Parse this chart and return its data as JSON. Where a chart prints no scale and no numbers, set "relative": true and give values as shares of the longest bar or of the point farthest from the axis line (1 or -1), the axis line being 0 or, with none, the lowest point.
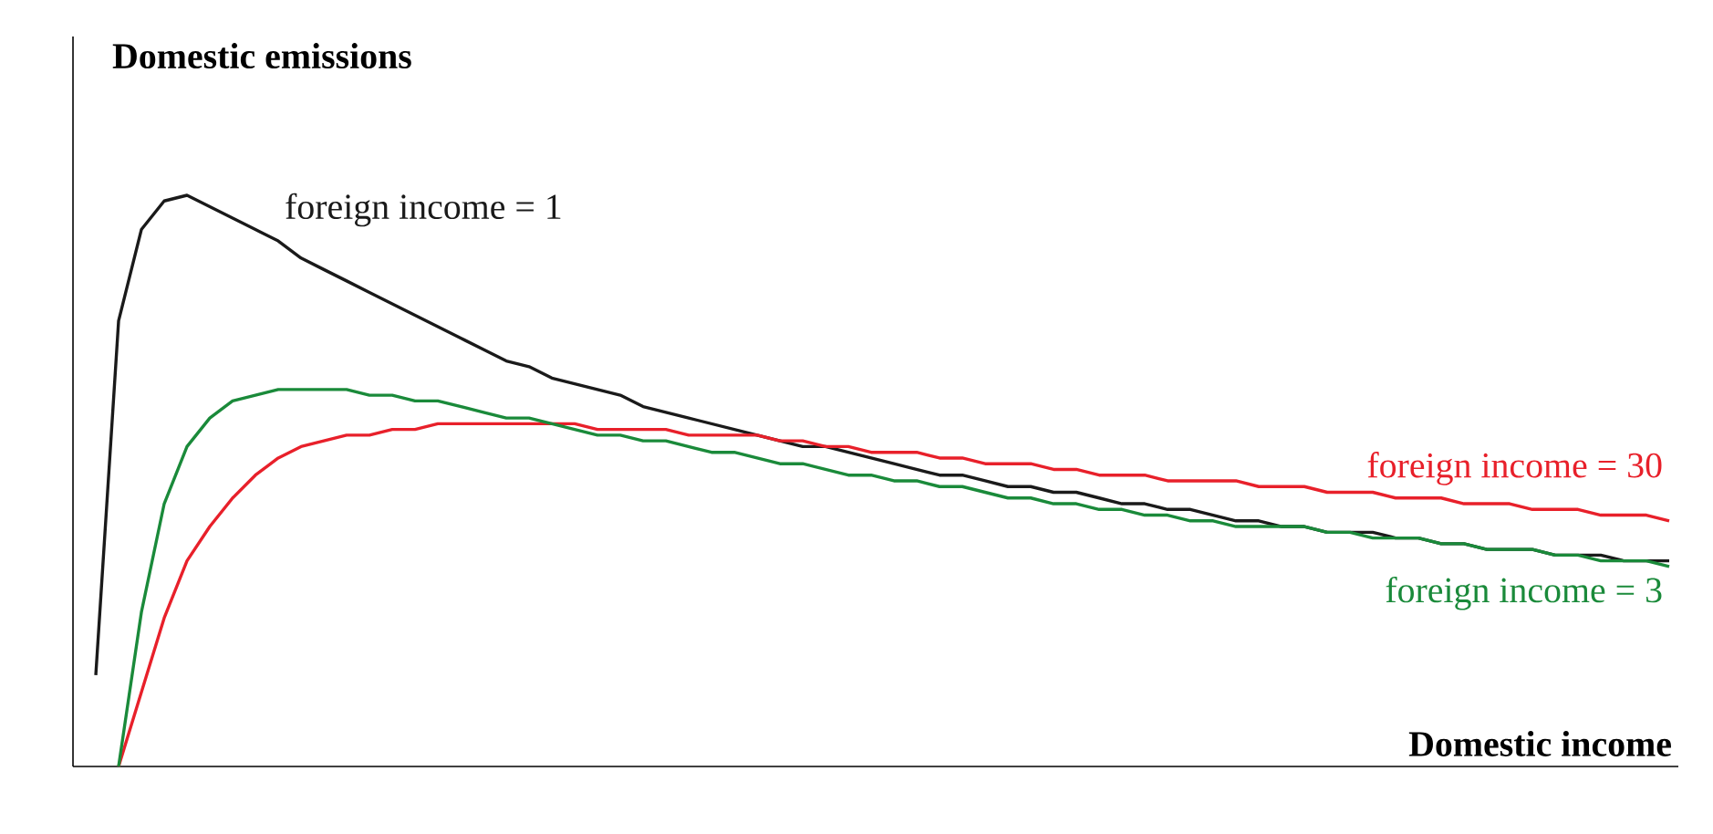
{
  "chart_data": {
    "type": "line",
    "relative": true,
    "xlabel": "Domestic income",
    "ylabel": "Domestic emissions",
    "categories": [
      null,
      null,
      null,
      null,
      null,
      null,
      null,
      null,
      null,
      null,
      null,
      null,
      null,
      null,
      null,
      null,
      null,
      null,
      null,
      null,
      null,
      null,
      null,
      null,
      null,
      null,
      null,
      null,
      null,
      null,
      null,
      null,
      null,
      null,
      null,
      null,
      null,
      null,
      null,
      null,
      null,
      null,
      null,
      null,
      null,
      null,
      null,
      null,
      null,
      null,
      null,
      null,
      null,
      null,
      null,
      null,
      null,
      null,
      null,
      null,
      null,
      null,
      null,
      null,
      null,
      null,
      null,
      null,
      null,
      null,
      null
    ],
    "series": [
      {
        "name": "foreign income = 1",
        "color": "#1a1a1a",
        "values": [
          null,
          0.16,
          0.78,
          0.94,
          0.99,
          1.0,
          0.98,
          0.96,
          0.94,
          0.92,
          0.89,
          0.87,
          0.85,
          0.83,
          0.81,
          0.79,
          0.77,
          0.75,
          0.73,
          0.71,
          0.7,
          0.68,
          0.67,
          0.66,
          0.65,
          0.63,
          0.62,
          0.61,
          0.6,
          0.59,
          0.58,
          0.57,
          0.56,
          0.56,
          0.55,
          0.54,
          0.53,
          0.52,
          0.51,
          0.51,
          0.5,
          0.49,
          0.49,
          0.48,
          0.48,
          0.47,
          0.46,
          0.46,
          0.45,
          0.45,
          0.44,
          0.43,
          0.43,
          0.42,
          0.42,
          0.41,
          0.41,
          0.41,
          0.4,
          0.4,
          0.39,
          0.39,
          0.38,
          0.38,
          0.38,
          0.37,
          0.37,
          0.37,
          0.36,
          0.36,
          0.36
        ]
      },
      {
        "name": "foreign income = 30",
        "color": "#e8202a",
        "values": [
          null,
          null,
          0,
          0.13,
          0.26,
          0.36,
          0.42,
          0.47,
          0.51,
          0.54,
          0.56,
          0.57,
          0.58,
          0.58,
          0.59,
          0.59,
          0.6,
          0.6,
          0.6,
          0.6,
          0.6,
          0.6,
          0.6,
          0.59,
          0.59,
          0.59,
          0.59,
          0.58,
          0.58,
          0.58,
          0.58,
          0.57,
          0.57,
          0.56,
          0.56,
          0.55,
          0.55,
          0.55,
          0.54,
          0.54,
          0.53,
          0.53,
          0.53,
          0.52,
          0.52,
          0.51,
          0.51,
          0.51,
          0.5,
          0.5,
          0.5,
          0.5,
          0.49,
          0.49,
          0.49,
          0.48,
          0.48,
          0.48,
          0.47,
          0.47,
          0.47,
          0.46,
          0.46,
          0.46,
          0.45,
          0.45,
          0.45,
          0.44,
          0.44,
          0.44,
          0.43
        ]
      },
      {
        "name": "foreign income = 3",
        "color": "#1a8a3a",
        "values": [
          null,
          null,
          0,
          0.27,
          0.46,
          0.56,
          0.61,
          0.64,
          0.65,
          0.66,
          0.66,
          0.66,
          0.66,
          0.65,
          0.65,
          0.64,
          0.64,
          0.63,
          0.62,
          0.61,
          0.61,
          0.6,
          0.59,
          0.58,
          0.58,
          0.57,
          0.57,
          0.56,
          0.55,
          0.55,
          0.54,
          0.53,
          0.53,
          0.52,
          0.51,
          0.51,
          0.5,
          0.5,
          0.49,
          0.49,
          0.48,
          0.47,
          0.47,
          0.46,
          0.46,
          0.45,
          0.45,
          0.44,
          0.44,
          0.43,
          0.43,
          0.42,
          0.42,
          0.42,
          0.42,
          0.41,
          0.41,
          0.4,
          0.4,
          0.4,
          0.39,
          0.39,
          0.38,
          0.38,
          0.38,
          0.37,
          0.37,
          0.36,
          0.36,
          0.36,
          0.35
        ]
      }
    ]
  }
}
